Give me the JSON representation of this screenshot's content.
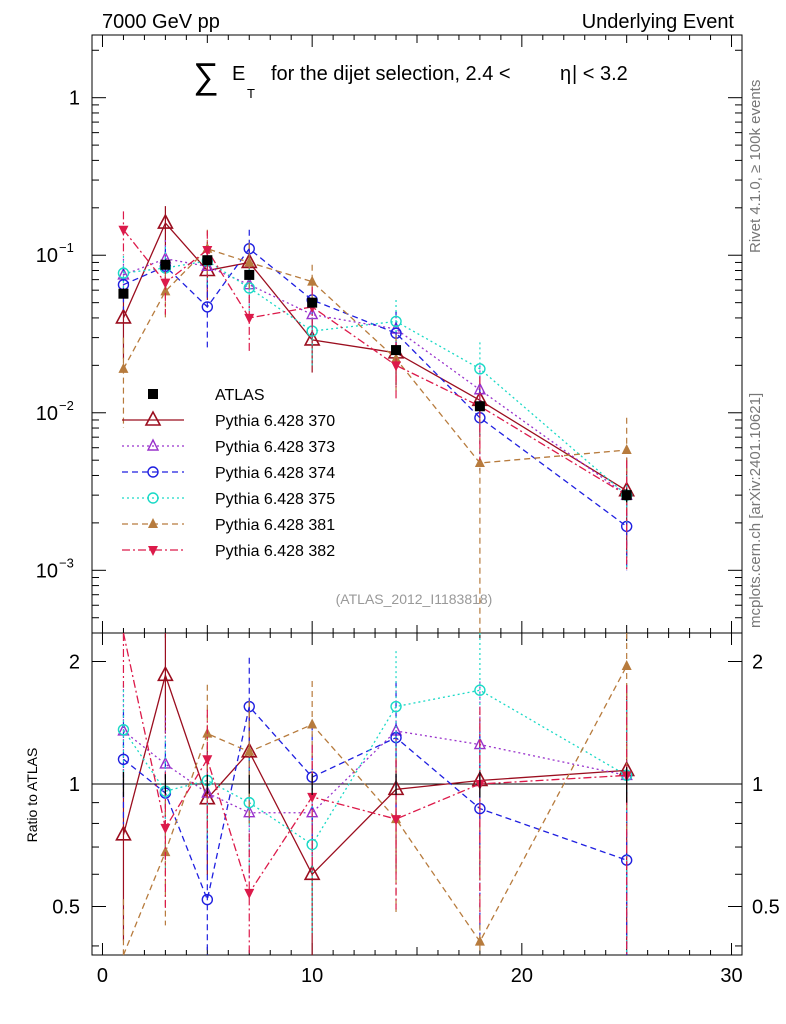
{
  "header": {
    "left": "7000 GeV pp",
    "right": "Underlying Event"
  },
  "title": {
    "sum": "∑",
    "e": "E",
    "t": "T",
    "rest": "for the dijet selection, 2.4 <",
    "eta": "η",
    "end": "| < 3.2"
  },
  "side": {
    "rivet": "Rivet 4.1.0, ≥ 100k events",
    "mcplots": "mcplots.cern.ch [arXiv:2401.10621]"
  },
  "watermark": "(ATLAS_2012_I1183818)",
  "ratio_label": "Ratio to ATLAS",
  "colors": {
    "ATLAS": "#000000",
    "p370": "#9b0e1f",
    "p373": "#9932cc",
    "p374": "#1f1fe0",
    "p375": "#1ad9c6",
    "p381": "#b77b3d",
    "p382": "#dc1a4a"
  },
  "chart_data": {
    "type": "scatter",
    "title": "∑ E_T for the dijet selection, 2.4 < |η| < 3.2",
    "xlabel": "",
    "ylabel_ratio": "Ratio to ATLAS",
    "xlim": [
      -0.5,
      30.5
    ],
    "ylim_main": [
      0.0004,
      2.5
    ],
    "yscale_main": "log",
    "ylim_ratio": [
      0.38,
      2.35
    ],
    "yscale_ratio": "log",
    "x_ticks": [
      0,
      10,
      20,
      30
    ],
    "y_ticks_main": [
      "10^-3",
      "10^-2",
      "10^-1",
      "1"
    ],
    "y_ticks_ratio": [
      "0.5",
      "1",
      "2"
    ],
    "legend_position": "middle-left",
    "x": [
      1,
      3,
      5,
      7,
      10,
      14,
      18,
      25
    ],
    "series": [
      {
        "name": "ATLAS",
        "key": "ATLAS",
        "marker": "square",
        "line": "none",
        "values": [
          0.057,
          0.087,
          0.093,
          0.075,
          0.05,
          0.025,
          0.011,
          0.003
        ],
        "errors": [
          0.004,
          0.005,
          0.005,
          0.004,
          0.003,
          0.0015,
          0.0008,
          0.0003
        ]
      },
      {
        "name": "Pythia 6.428 370",
        "key": "p370",
        "marker": "triangle-up-open",
        "line": "solid",
        "values": [
          0.04,
          0.16,
          0.08,
          0.09,
          0.029,
          0.024,
          0.012,
          0.0032
        ],
        "errors": [
          0.018,
          0.045,
          0.028,
          0.03,
          0.011,
          0.009,
          0.005,
          0.002
        ],
        "ratio": [
          0.75,
          1.85,
          0.92,
          1.2,
          0.6,
          0.97,
          1.02,
          1.08
        ]
      },
      {
        "name": "Pythia 6.428 373",
        "key": "p373",
        "marker": "triangle-up-open-small",
        "line": "dotted",
        "values": [
          0.075,
          0.095,
          0.085,
          0.065,
          0.042,
          0.034,
          0.014,
          0.003
        ],
        "errors": [
          0.02,
          0.03,
          0.025,
          0.02,
          0.012,
          0.01,
          0.006,
          0.002
        ],
        "ratio": [
          1.35,
          1.12,
          0.95,
          0.85,
          0.85,
          1.35,
          1.25,
          1.05
        ]
      },
      {
        "name": "Pythia 6.428 374",
        "key": "p374",
        "marker": "circle-open",
        "line": "dashed",
        "values": [
          0.065,
          0.085,
          0.047,
          0.11,
          0.052,
          0.032,
          0.0093,
          0.0019
        ],
        "errors": [
          0.02,
          0.028,
          0.021,
          0.035,
          0.018,
          0.012,
          0.005,
          0.0009
        ],
        "ratio": [
          1.15,
          0.95,
          0.52,
          1.55,
          1.04,
          1.3,
          0.87,
          0.65
        ]
      },
      {
        "name": "Pythia 6.428 375",
        "key": "p375",
        "marker": "circle-open",
        "line": "dotted",
        "values": [
          0.077,
          0.083,
          0.092,
          0.062,
          0.033,
          0.038,
          0.019,
          0.003
        ],
        "errors": [
          0.022,
          0.03,
          0.028,
          0.02,
          0.013,
          0.014,
          0.009,
          0.002
        ],
        "ratio": [
          1.36,
          0.96,
          1.02,
          0.9,
          0.71,
          1.55,
          1.7,
          1.05
        ]
      },
      {
        "name": "Pythia 6.428 381",
        "key": "p381",
        "marker": "triangle-up-filled",
        "line": "dashed",
        "values": [
          0.019,
          0.059,
          0.11,
          0.09,
          0.068,
          0.022,
          0.0048,
          0.0058
        ],
        "errors": [
          0.011,
          0.02,
          0.035,
          0.03,
          0.019,
          0.009,
          0.0045,
          0.0035
        ],
        "ratio": [
          0.33,
          0.68,
          1.33,
          1.2,
          1.4,
          0.82,
          0.41,
          1.95
        ]
      },
      {
        "name": "Pythia 6.428 382",
        "key": "p382",
        "marker": "triangle-down-filled",
        "line": "dashdot",
        "values": [
          0.145,
          0.067,
          0.108,
          0.04,
          0.047,
          0.02,
          0.011,
          0.003
        ],
        "errors": [
          0.045,
          0.025,
          0.035,
          0.016,
          0.016,
          0.008,
          0.006,
          0.002
        ],
        "ratio": [
          2.5,
          0.78,
          1.15,
          0.54,
          0.93,
          0.82,
          1.0,
          1.05
        ]
      }
    ]
  }
}
